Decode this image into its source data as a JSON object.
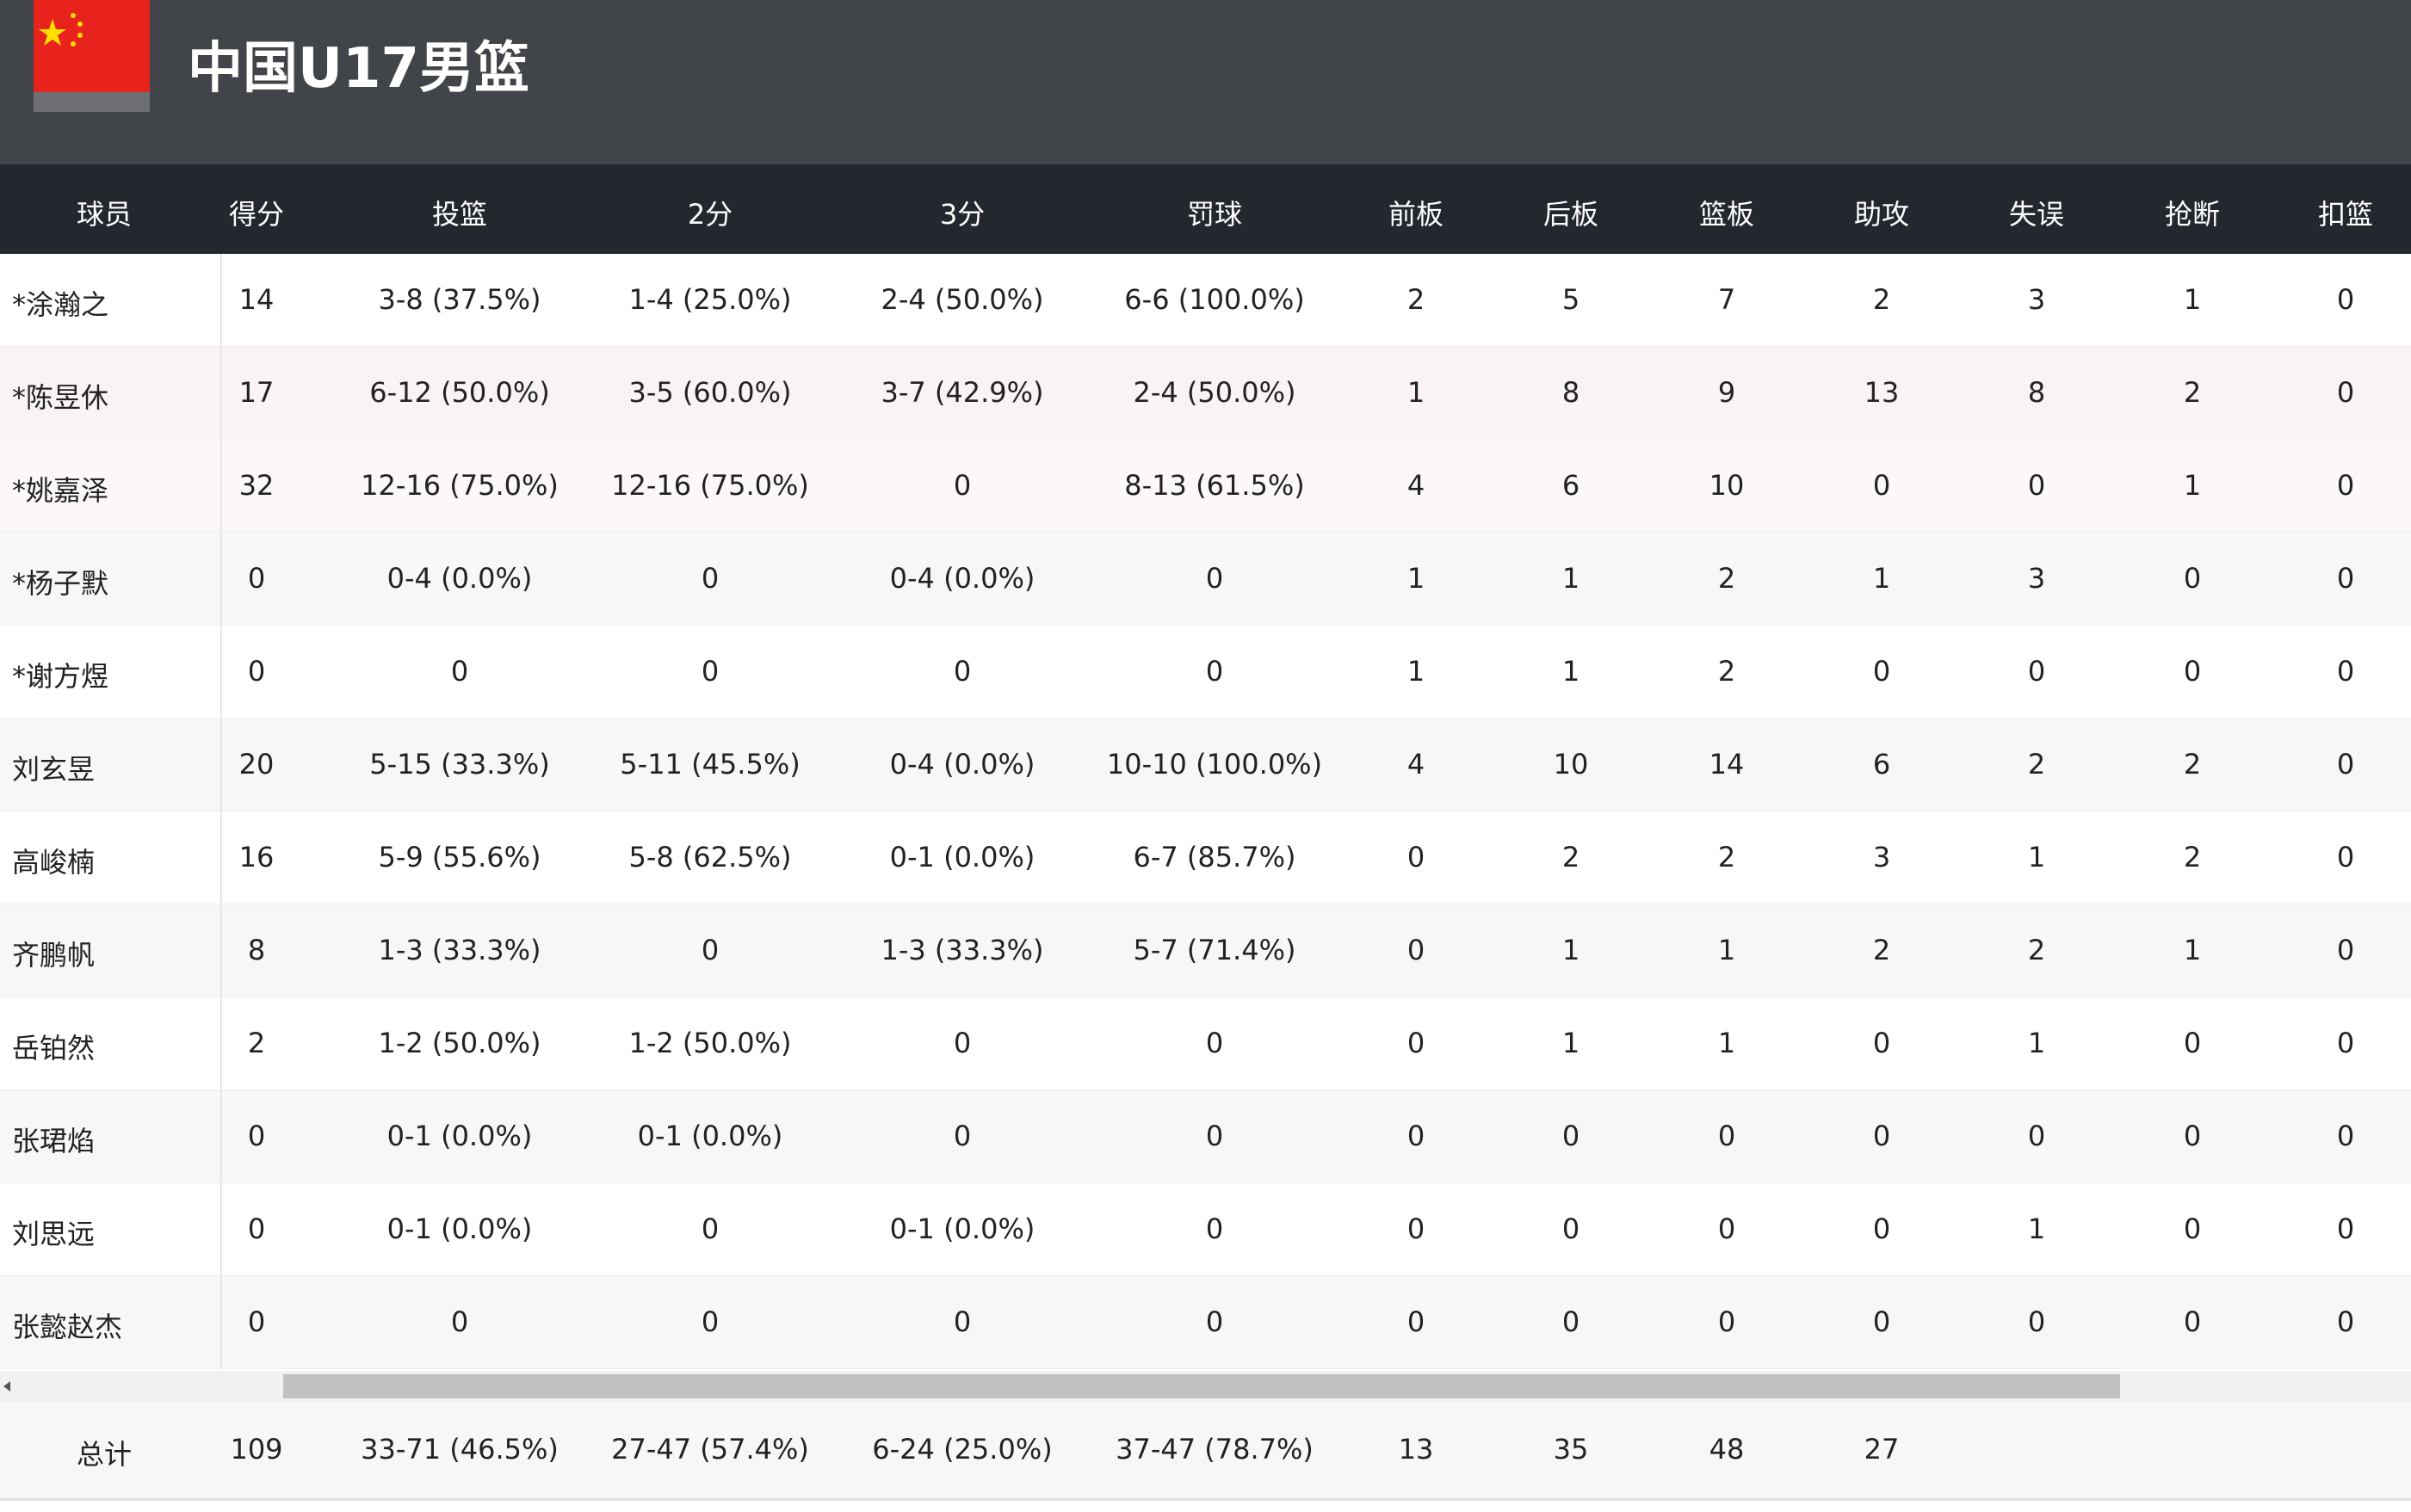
{
  "header": {
    "title": "中国U17男篮"
  },
  "table": {
    "columns": [
      "球员",
      "得分",
      "投篮",
      "2分",
      "3分",
      "罚球",
      "前板",
      "后板",
      "篮板",
      "助攻",
      "失误",
      "抢断",
      "扣篮"
    ],
    "rows": [
      [
        "*涂瀚之",
        "14",
        "3-8 (37.5%)",
        "1-4 (25.0%)",
        "2-4 (50.0%)",
        "6-6 (100.0%)",
        "2",
        "5",
        "7",
        "2",
        "3",
        "1",
        "0"
      ],
      [
        "*陈昱休",
        "17",
        "6-12 (50.0%)",
        "3-5 (60.0%)",
        "3-7 (42.9%)",
        "2-4 (50.0%)",
        "1",
        "8",
        "9",
        "13",
        "8",
        "2",
        "0"
      ],
      [
        "*姚嘉泽",
        "32",
        "12-16 (75.0%)",
        "12-16 (75.0%)",
        "0",
        "8-13 (61.5%)",
        "4",
        "6",
        "10",
        "0",
        "0",
        "1",
        "0"
      ],
      [
        "*杨子默",
        "0",
        "0-4 (0.0%)",
        "0",
        "0-4 (0.0%)",
        "0",
        "1",
        "1",
        "2",
        "1",
        "3",
        "0",
        "0"
      ],
      [
        "*谢方煜",
        "0",
        "0",
        "0",
        "0",
        "0",
        "1",
        "1",
        "2",
        "0",
        "0",
        "0",
        "0"
      ],
      [
        "刘玄昱",
        "20",
        "5-15 (33.3%)",
        "5-11 (45.5%)",
        "0-4 (0.0%)",
        "10-10 (100.0%)",
        "4",
        "10",
        "14",
        "6",
        "2",
        "2",
        "0"
      ],
      [
        "高峻楠",
        "16",
        "5-9 (55.6%)",
        "5-8 (62.5%)",
        "0-1 (0.0%)",
        "6-7 (85.7%)",
        "0",
        "2",
        "2",
        "3",
        "1",
        "2",
        "0"
      ],
      [
        "齐鹏帆",
        "8",
        "1-3 (33.3%)",
        "0",
        "1-3 (33.3%)",
        "5-7 (71.4%)",
        "0",
        "1",
        "1",
        "2",
        "2",
        "1",
        "0"
      ],
      [
        "岳铂然",
        "2",
        "1-2 (50.0%)",
        "1-2 (50.0%)",
        "0",
        "0",
        "0",
        "1",
        "1",
        "0",
        "1",
        "0",
        "0"
      ],
      [
        "张珺焰",
        "0",
        "0-1 (0.0%)",
        "0-1 (0.0%)",
        "0",
        "0",
        "0",
        "0",
        "0",
        "0",
        "0",
        "0",
        "0"
      ],
      [
        "刘思远",
        "0",
        "0-1 (0.0%)",
        "0",
        "0-1 (0.0%)",
        "0",
        "0",
        "0",
        "0",
        "0",
        "1",
        "0",
        "0"
      ],
      [
        "张懿赵杰",
        "0",
        "0",
        "0",
        "0",
        "0",
        "0",
        "0",
        "0",
        "0",
        "0",
        "0",
        "0"
      ]
    ],
    "totals": [
      "总计",
      "109",
      "33-71 (46.5%)",
      "27-47 (57.4%)",
      "6-24 (25.0%)",
      "37-47 (78.7%)",
      "13",
      "35",
      "48",
      "27"
    ]
  }
}
